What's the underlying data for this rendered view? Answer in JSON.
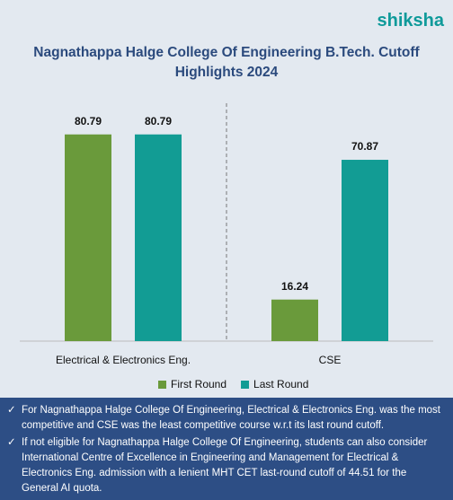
{
  "logo": "shiksha",
  "chart_data": {
    "type": "bar",
    "title": "Nagnathappa Halge College Of Engineering B.Tech. Cutoff Highlights 2024",
    "categories": [
      "Electrical & Electronics Eng.",
      "CSE"
    ],
    "series": [
      {
        "name": "First Round",
        "color": "#6a9a3b",
        "values": [
          80.79,
          16.24
        ]
      },
      {
        "name": "Last Round",
        "color": "#129c94",
        "values": [
          80.79,
          70.87
        ]
      }
    ],
    "ylim": [
      0,
      100
    ],
    "legend": "bottom"
  },
  "notes": [
    "For Nagnathappa Halge College Of Engineering, Electrical & Electronics Eng. was the most competitive and CSE was the least competitive course w.r.t its last round cutoff.",
    "If not eligible for Nagnathappa Halge College Of Engineering, students can also consider International Centre of Excellence in Engineering and Management for Electrical & Electronics Eng. admission with a lenient MHT CET last-round cutoff of 44.51 for the General AI quota."
  ]
}
